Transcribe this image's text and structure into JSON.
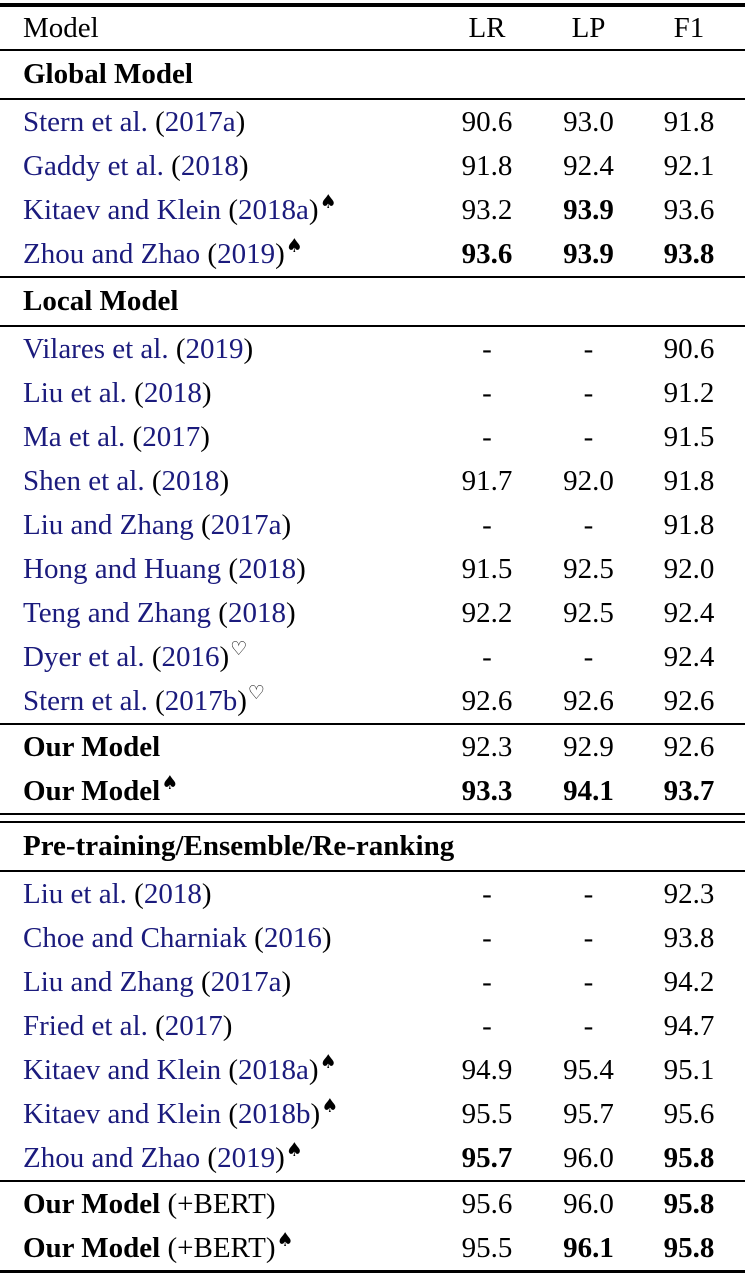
{
  "colors": {
    "citation": "#1b1b7d",
    "text": "#000000",
    "rule": "#000000",
    "background": "#ffffff"
  },
  "symbols": {
    "spade": "♠",
    "heart": "♡"
  },
  "table": {
    "columns": [
      {
        "key": "model",
        "label": "Model",
        "align": "left"
      },
      {
        "key": "lr",
        "label": "LR",
        "align": "center"
      },
      {
        "key": "lp",
        "label": "LP",
        "align": "center"
      },
      {
        "key": "f1",
        "label": "F1",
        "align": "center"
      }
    ],
    "sections": [
      {
        "name": "global-model",
        "separator_above": "single",
        "header": "Global Model",
        "groups": [
          {
            "rows": [
              {
                "type": "cite",
                "author": "Stern et al.",
                "year": "2017a",
                "sup": null,
                "lr": "90.6",
                "lp": "93.0",
                "f1": "91.8",
                "bold": [
                  false,
                  false,
                  false
                ]
              },
              {
                "type": "cite",
                "author": "Gaddy et al.",
                "year": "2018",
                "sup": null,
                "lr": "91.8",
                "lp": "92.4",
                "f1": "92.1",
                "bold": [
                  false,
                  false,
                  false
                ]
              },
              {
                "type": "cite",
                "author": "Kitaev and Klein",
                "year": "2018a",
                "sup": "spade",
                "lr": "93.2",
                "lp": "93.9",
                "f1": "93.6",
                "bold": [
                  false,
                  true,
                  false
                ]
              },
              {
                "type": "cite",
                "author": "Zhou and Zhao",
                "year": "2019",
                "sup": "spade",
                "lr": "93.6",
                "lp": "93.9",
                "f1": "93.8",
                "bold": [
                  true,
                  true,
                  true
                ]
              }
            ]
          }
        ]
      },
      {
        "name": "local-model",
        "separator_above": "single",
        "header": "Local Model",
        "groups": [
          {
            "rows": [
              {
                "type": "cite",
                "author": "Vilares et al.",
                "year": "2019",
                "sup": null,
                "lr": "-",
                "lp": "-",
                "f1": "90.6",
                "bold": [
                  false,
                  false,
                  false
                ]
              },
              {
                "type": "cite",
                "author": "Liu et al.",
                "year": "2018",
                "sup": null,
                "lr": "-",
                "lp": "-",
                "f1": "91.2",
                "bold": [
                  false,
                  false,
                  false
                ]
              },
              {
                "type": "cite",
                "author": "Ma et al.",
                "year": "2017",
                "sup": null,
                "lr": "-",
                "lp": "-",
                "f1": "91.5",
                "bold": [
                  false,
                  false,
                  false
                ]
              },
              {
                "type": "cite",
                "author": "Shen et al.",
                "year": "2018",
                "sup": null,
                "lr": "91.7",
                "lp": "92.0",
                "f1": "91.8",
                "bold": [
                  false,
                  false,
                  false
                ]
              },
              {
                "type": "cite",
                "author": "Liu and Zhang",
                "year": "2017a",
                "sup": null,
                "lr": "-",
                "lp": "-",
                "f1": "91.8",
                "bold": [
                  false,
                  false,
                  false
                ]
              },
              {
                "type": "cite",
                "author": "Hong and Huang",
                "year": "2018",
                "sup": null,
                "lr": "91.5",
                "lp": "92.5",
                "f1": "92.0",
                "bold": [
                  false,
                  false,
                  false
                ]
              },
              {
                "type": "cite",
                "author": "Teng and Zhang",
                "year": "2018",
                "sup": null,
                "lr": "92.2",
                "lp": "92.5",
                "f1": "92.4",
                "bold": [
                  false,
                  false,
                  false
                ]
              },
              {
                "type": "cite",
                "author": "Dyer et al.",
                "year": "2016",
                "sup": "heart",
                "lr": "-",
                "lp": "-",
                "f1": "92.4",
                "bold": [
                  false,
                  false,
                  false
                ]
              },
              {
                "type": "cite",
                "author": "Stern et al.",
                "year": "2017b",
                "sup": "heart",
                "lr": "92.6",
                "lp": "92.6",
                "f1": "92.6",
                "bold": [
                  false,
                  false,
                  false
                ]
              }
            ]
          },
          {
            "rows": [
              {
                "type": "ours",
                "label": "Our Model",
                "suffix": "",
                "sup": null,
                "lr": "92.3",
                "lp": "92.9",
                "f1": "92.6",
                "bold": [
                  false,
                  false,
                  false
                ]
              },
              {
                "type": "ours",
                "label": "Our Model",
                "suffix": "",
                "sup": "spade",
                "lr": "93.3",
                "lp": "94.1",
                "f1": "93.7",
                "bold": [
                  true,
                  true,
                  true
                ]
              }
            ]
          }
        ]
      },
      {
        "name": "pretraining-ensemble-reranking",
        "separator_above": "double",
        "header": "Pre-training/Ensemble/Re-ranking",
        "groups": [
          {
            "rows": [
              {
                "type": "cite",
                "author": "Liu et al.",
                "year": "2018",
                "sup": null,
                "lr": "-",
                "lp": "-",
                "f1": "92.3",
                "bold": [
                  false,
                  false,
                  false
                ]
              },
              {
                "type": "cite",
                "author": "Choe and Charniak",
                "year": "2016",
                "sup": null,
                "lr": "-",
                "lp": "-",
                "f1": "93.8",
                "bold": [
                  false,
                  false,
                  false
                ]
              },
              {
                "type": "cite",
                "author": "Liu and Zhang",
                "year": "2017a",
                "sup": null,
                "lr": "-",
                "lp": "-",
                "f1": "94.2",
                "bold": [
                  false,
                  false,
                  false
                ]
              },
              {
                "type": "cite",
                "author": "Fried et al.",
                "year": "2017",
                "sup": null,
                "lr": "-",
                "lp": "-",
                "f1": "94.7",
                "bold": [
                  false,
                  false,
                  false
                ]
              },
              {
                "type": "cite",
                "author": "Kitaev and Klein",
                "year": "2018a",
                "sup": "spade",
                "lr": "94.9",
                "lp": "95.4",
                "f1": "95.1",
                "bold": [
                  false,
                  false,
                  false
                ]
              },
              {
                "type": "cite",
                "author": "Kitaev and Klein",
                "year": "2018b",
                "sup": "spade",
                "lr": "95.5",
                "lp": "95.7",
                "f1": "95.6",
                "bold": [
                  false,
                  false,
                  false
                ]
              },
              {
                "type": "cite",
                "author": "Zhou and Zhao",
                "year": "2019",
                "sup": "spade",
                "lr": "95.7",
                "lp": "96.0",
                "f1": "95.8",
                "bold": [
                  true,
                  false,
                  true
                ]
              }
            ]
          },
          {
            "rows": [
              {
                "type": "ours",
                "label": "Our Model",
                "suffix": " (+BERT)",
                "sup": null,
                "lr": "95.6",
                "lp": "96.0",
                "f1": "95.8",
                "bold": [
                  false,
                  false,
                  true
                ]
              },
              {
                "type": "ours",
                "label": "Our Model",
                "suffix": " (+BERT)",
                "sup": "spade",
                "lr": "95.5",
                "lp": "96.1",
                "f1": "95.8",
                "bold": [
                  false,
                  true,
                  true
                ]
              }
            ]
          }
        ]
      }
    ]
  }
}
